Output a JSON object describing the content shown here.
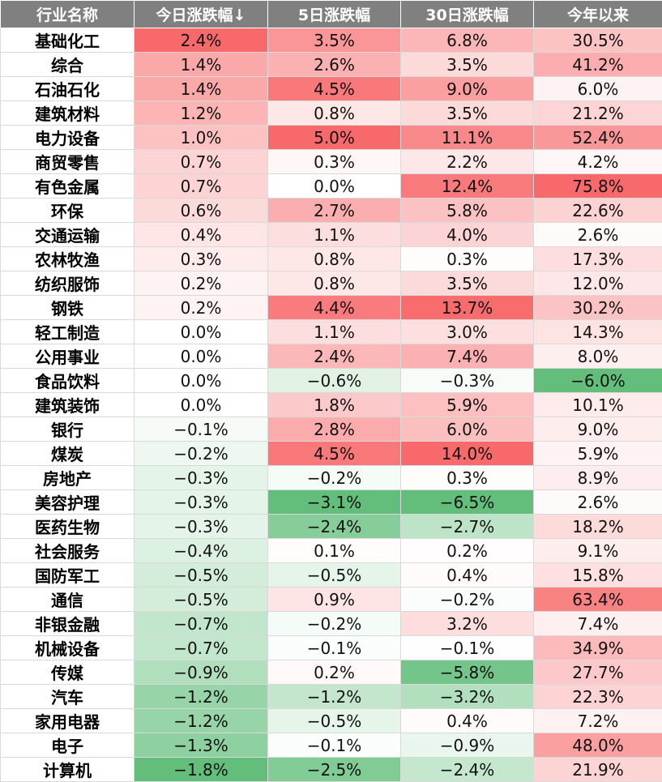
{
  "headers": [
    "行业名称",
    "今日涨跌幅↓",
    "5日涨跌幅",
    "30日涨跌幅",
    "今年以来"
  ],
  "rows": [
    {
      "name": "基础化工",
      "today": "2.4%",
      "d5": "3.5%",
      "d30": "6.8%",
      "ytd": "30.5%"
    },
    {
      "name": "综合",
      "today": "1.4%",
      "d5": "2.6%",
      "d30": "3.5%",
      "ytd": "41.2%"
    },
    {
      "name": "石油石化",
      "today": "1.4%",
      "d5": "4.5%",
      "d30": "9.0%",
      "ytd": "6.0%"
    },
    {
      "name": "建筑材料",
      "today": "1.2%",
      "d5": "0.8%",
      "d30": "3.5%",
      "ytd": "21.2%"
    },
    {
      "name": "电力设备",
      "today": "1.0%",
      "d5": "5.0%",
      "d30": "11.1%",
      "ytd": "52.4%"
    },
    {
      "name": "商贸零售",
      "today": "0.7%",
      "d5": "0.3%",
      "d30": "2.2%",
      "ytd": "4.2%"
    },
    {
      "name": "有色金属",
      "today": "0.7%",
      "d5": "0.0%",
      "d30": "12.4%",
      "ytd": "75.8%"
    },
    {
      "name": "环保",
      "today": "0.6%",
      "d5": "2.7%",
      "d30": "5.8%",
      "ytd": "22.6%"
    },
    {
      "name": "交通运输",
      "today": "0.4%",
      "d5": "1.1%",
      "d30": "4.0%",
      "ytd": "2.6%"
    },
    {
      "name": "农林牧渔",
      "today": "0.3%",
      "d5": "0.8%",
      "d30": "0.3%",
      "ytd": "17.3%"
    },
    {
      "name": "纺织服饰",
      "today": "0.2%",
      "d5": "0.8%",
      "d30": "3.5%",
      "ytd": "12.0%"
    },
    {
      "name": "钢铁",
      "today": "0.2%",
      "d5": "4.4%",
      "d30": "13.7%",
      "ytd": "30.2%"
    },
    {
      "name": "轻工制造",
      "today": "0.0%",
      "d5": "1.1%",
      "d30": "3.0%",
      "ytd": "14.3%"
    },
    {
      "name": "公用事业",
      "today": "0.0%",
      "d5": "2.4%",
      "d30": "7.4%",
      "ytd": "8.0%"
    },
    {
      "name": "食品饮料",
      "today": "0.0%",
      "d5": "−0.6%",
      "d30": "−0.3%",
      "ytd": "−6.0%"
    },
    {
      "name": "建筑装饰",
      "today": "0.0%",
      "d5": "1.8%",
      "d30": "5.9%",
      "ytd": "10.1%"
    },
    {
      "name": "银行",
      "today": "−0.1%",
      "d5": "2.8%",
      "d30": "6.0%",
      "ytd": "9.0%"
    },
    {
      "name": "煤炭",
      "today": "−0.2%",
      "d5": "4.5%",
      "d30": "14.0%",
      "ytd": "5.9%"
    },
    {
      "name": "房地产",
      "today": "−0.3%",
      "d5": "−0.2%",
      "d30": "0.3%",
      "ytd": "8.9%"
    },
    {
      "name": "美容护理",
      "today": "−0.3%",
      "d5": "−3.1%",
      "d30": "−6.5%",
      "ytd": "2.6%"
    },
    {
      "name": "医药生物",
      "today": "−0.3%",
      "d5": "−2.4%",
      "d30": "−2.7%",
      "ytd": "18.2%"
    },
    {
      "name": "社会服务",
      "today": "−0.4%",
      "d5": "0.1%",
      "d30": "0.2%",
      "ytd": "9.1%"
    },
    {
      "name": "国防军工",
      "today": "−0.5%",
      "d5": "−0.5%",
      "d30": "0.4%",
      "ytd": "15.8%"
    },
    {
      "name": "通信",
      "today": "−0.5%",
      "d5": "0.9%",
      "d30": "−0.2%",
      "ytd": "63.4%"
    },
    {
      "name": "非银金融",
      "today": "−0.7%",
      "d5": "−0.2%",
      "d30": "3.2%",
      "ytd": "7.4%"
    },
    {
      "name": "机械设备",
      "today": "−0.7%",
      "d5": "−0.1%",
      "d30": "−0.1%",
      "ytd": "34.9%"
    },
    {
      "name": "传媒",
      "today": "−0.9%",
      "d5": "0.2%",
      "d30": "−5.8%",
      "ytd": "27.7%"
    },
    {
      "name": "汽车",
      "today": "−1.2%",
      "d5": "−1.2%",
      "d30": "−3.2%",
      "ytd": "22.3%"
    },
    {
      "name": "家用电器",
      "today": "−1.2%",
      "d5": "−0.5%",
      "d30": "0.4%",
      "ytd": "7.2%"
    },
    {
      "name": "电子",
      "today": "−1.3%",
      "d5": "−0.1%",
      "d30": "−0.9%",
      "ytd": "48.0%"
    },
    {
      "name": "计算机",
      "today": "−1.8%",
      "d5": "−2.5%",
      "d30": "−2.4%",
      "ytd": "21.9%"
    }
  ],
  "colors": {
    "header_bg": "#808080",
    "positive_max": "#f8696b",
    "negative_max": "#63be7b",
    "neutral": "#ffffff"
  }
}
